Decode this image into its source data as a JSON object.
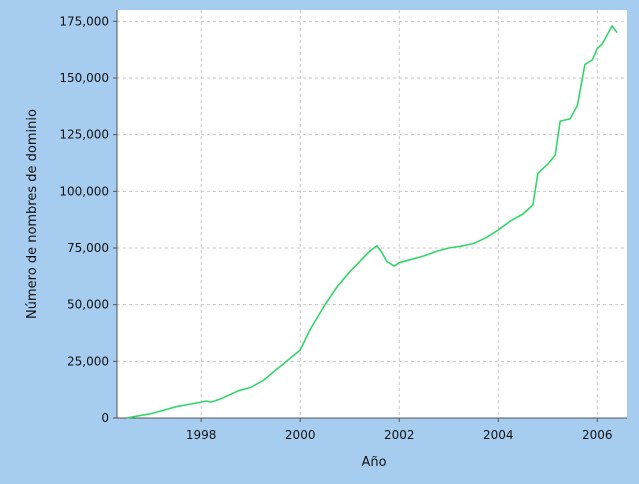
{
  "chart_data": {
    "type": "line",
    "title": "",
    "xlabel": "Año",
    "ylabel": "Número de nombres de dominio",
    "xlim": [
      1996.3,
      2006.6
    ],
    "ylim": [
      0,
      180000
    ],
    "x_ticks": [
      1998,
      2000,
      2002,
      2004,
      2006
    ],
    "x_tick_labels": [
      "1998",
      "2000",
      "2002",
      "2004",
      "2006"
    ],
    "y_ticks": [
      0,
      25000,
      50000,
      75000,
      100000,
      125000,
      150000,
      175000
    ],
    "y_tick_labels": [
      "0",
      "25,000",
      "50,000",
      "75,000",
      "100,000",
      "125,000",
      "150,000",
      "175,000"
    ],
    "grid": true,
    "legend": "none",
    "colors": {
      "line": "#33d66a",
      "background": "#a6cdf0",
      "plot": "#ffffff",
      "grid": "#c8c8c8"
    },
    "series": [
      {
        "x": [
          1996.5,
          1996.75,
          1997.0,
          1997.25,
          1997.5,
          1997.75,
          1998.0,
          1998.1,
          1998.2,
          1998.4,
          1998.6,
          1998.75,
          1999.0,
          1999.25,
          1999.5,
          1999.75,
          2000.0,
          2000.2,
          2000.5,
          2000.75,
          2001.0,
          2001.2,
          2001.4,
          2001.55,
          2001.65,
          2001.75,
          2001.9,
          2002.0,
          2002.25,
          2002.5,
          2002.75,
          2003.0,
          2003.25,
          2003.5,
          2003.75,
          2004.0,
          2004.25,
          2004.5,
          2004.7,
          2004.8,
          2005.0,
          2005.15,
          2005.25,
          2005.45,
          2005.6,
          2005.75,
          2005.9,
          2006.0,
          2006.1,
          2006.2,
          2006.3,
          2006.4
        ],
        "values": [
          0,
          1000,
          2000,
          3500,
          5000,
          6000,
          7000,
          7500,
          7000,
          8500,
          10500,
          12000,
          13500,
          16500,
          21000,
          25500,
          30000,
          39000,
          50000,
          58000,
          64500,
          69000,
          73500,
          76000,
          73000,
          69000,
          67000,
          68500,
          70000,
          71500,
          73500,
          75000,
          75800,
          77000,
          79500,
          83000,
          87000,
          90000,
          94000,
          108000,
          112000,
          116000,
          131000,
          132000,
          138000,
          156000,
          158000,
          163000,
          165000,
          169000,
          173000,
          170000
        ]
      }
    ]
  }
}
